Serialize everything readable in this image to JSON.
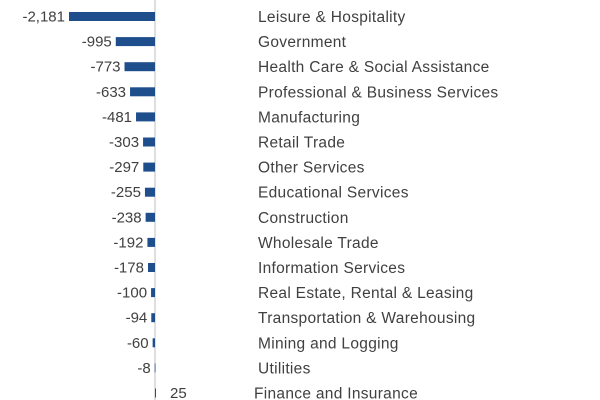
{
  "chart_data": {
    "type": "bar",
    "orientation": "horizontal",
    "title": "",
    "xlabel": "",
    "ylabel": "",
    "bar_color": "#1f4e8c",
    "axis_color": "#bfbfbf",
    "text_color": "#404040",
    "categories": [
      "Leisure & Hospitality",
      "Government",
      "Health Care & Social Assistance",
      "Professional & Business Services",
      "Manufacturing",
      "Retail Trade",
      "Other Services",
      "Educational Services",
      "Construction",
      "Wholesale Trade",
      "Information Services",
      "Real Estate, Rental & Leasing",
      "Transportation & Warehousing",
      "Mining and Logging",
      "Utilities",
      "Finance and Insurance"
    ],
    "values": [
      -2181,
      -995,
      -773,
      -633,
      -481,
      -303,
      -297,
      -255,
      -238,
      -192,
      -178,
      -100,
      -94,
      -60,
      -8,
      25
    ],
    "value_labels": [
      "-2,181",
      "-995",
      "-773",
      "-633",
      "-481",
      "-303",
      "-297",
      "-255",
      "-238",
      "-192",
      "-178",
      "-100",
      "-94",
      "-60",
      "-8",
      "25"
    ]
  }
}
